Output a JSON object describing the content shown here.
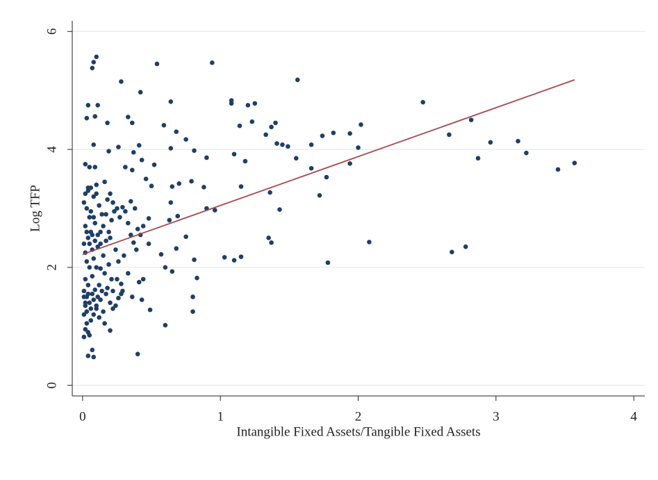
{
  "chart_data": {
    "type": "scatter",
    "xlabel": "Intangible Fixed Assets/Tangible Fixed Assets",
    "ylabel": "Log TFP",
    "color": "#1f3f66",
    "xlim": [
      -0.075,
      4.08
    ],
    "ylim": [
      -0.18,
      6.18
    ],
    "xticks": [
      0,
      1,
      2,
      3,
      4
    ],
    "yticks": [
      0,
      2,
      4,
      6
    ],
    "grid": true,
    "x": [
      0.94,
      0.54,
      0.1,
      0.08,
      0.07,
      0.28,
      1.56,
      0.42,
      0.64,
      1.08,
      1.08,
      1.2,
      1.25,
      2.47,
      0.33,
      0.09,
      0.04,
      0.11,
      1.14,
      1.23,
      1.37,
      1.4,
      0.59,
      0.18,
      0.36,
      0.03,
      0.68,
      0.75,
      1.33,
      1.74,
      1.82,
      1.94,
      2.02,
      1.41,
      1.45,
      1.49,
      1.66,
      2.0,
      2.82,
      2.66,
      2.96,
      3.16,
      3.22,
      2.87,
      0.9,
      0.81,
      1.1,
      1.18,
      1.55,
      1.66,
      1.94,
      1.77,
      3.45,
      3.57,
      1.72,
      1.36,
      1.43,
      1.15,
      0.88,
      0.79,
      0.7,
      0.65,
      0.9,
      0.96,
      0.69,
      0.75,
      1.35,
      1.37,
      2.08,
      2.68,
      2.78,
      1.03,
      1.1,
      1.15,
      1.78,
      0.81,
      0.68,
      0.57,
      0.6,
      0.65,
      0.83,
      0.8,
      0.8,
      0.6,
      0.49,
      0.43,
      0.4,
      0.2,
      0.07,
      0.04,
      0.08,
      0.48,
      0.48,
      0.63,
      0.64,
      0.64,
      0.52,
      0.43,
      0.41,
      0.37,
      0.46,
      0.5,
      0.36,
      0.31,
      0.26,
      0.19,
      0.08,
      0.01,
      0.02,
      0.03,
      0.01,
      0.04,
      0.02,
      0.05,
      0.06,
      0.03,
      0.02,
      0.01,
      0.04,
      0.07,
      0.08,
      0.09,
      0.1,
      0.11,
      0.12,
      0.13,
      0.14,
      0.15,
      0.17,
      0.18,
      0.2,
      0.22,
      0.24,
      0.26,
      0.28,
      0.21,
      0.16,
      0.05,
      0.03,
      0.02,
      0.01,
      0.04,
      0.06,
      0.02,
      0.05,
      0.03,
      0.01,
      0.04,
      0.06,
      0.08,
      0.1,
      0.12,
      0.14,
      0.09,
      0.11,
      0.13,
      0.07,
      0.08,
      0.1,
      0.15,
      0.17,
      0.19,
      0.21,
      0.23,
      0.25,
      0.27,
      0.29,
      0.31,
      0.33,
      0.35,
      0.37,
      0.39,
      0.3,
      0.26,
      0.24,
      0.2,
      0.18,
      0.2,
      0.22,
      0.16,
      0.02,
      0.05,
      0.09,
      0.35,
      0.38,
      0.4,
      0.42,
      0.44,
      0.41,
      0.44,
      0.36,
      0.33,
      0.29,
      0.25,
      0.19,
      0.13,
      0.07,
      0.04,
      0.06,
      0.08,
      0.1,
      0.12,
      0.03,
      0.05,
      0.02,
      0.01,
      0.03,
      0.05,
      0.07,
      0.09,
      0.11,
      0.13,
      0.15,
      0.17,
      0.06,
      0.08,
      0.1,
      0.04,
      0.02,
      0.16,
      0.22,
      0.28
    ],
    "values": [
      5.47,
      5.45,
      5.57,
      5.48,
      5.38,
      5.15,
      5.18,
      4.97,
      4.81,
      4.83,
      4.78,
      4.75,
      4.78,
      4.8,
      4.55,
      4.56,
      4.75,
      4.75,
      4.4,
      4.47,
      4.38,
      4.45,
      4.41,
      4.45,
      4.45,
      4.53,
      4.3,
      4.17,
      4.25,
      4.23,
      4.28,
      4.27,
      4.42,
      4.1,
      4.08,
      4.05,
      4.08,
      4.03,
      4.5,
      4.25,
      4.12,
      4.14,
      3.94,
      3.85,
      3.86,
      3.98,
      3.92,
      3.8,
      3.85,
      3.68,
      3.76,
      3.53,
      3.66,
      3.77,
      3.22,
      3.27,
      2.98,
      3.37,
      3.36,
      3.46,
      3.42,
      3.37,
      3.0,
      2.97,
      2.87,
      2.52,
      2.5,
      2.42,
      2.43,
      2.26,
      2.35,
      2.17,
      2.12,
      2.18,
      2.08,
      2.13,
      2.32,
      2.22,
      2.0,
      1.93,
      1.82,
      1.5,
      1.25,
      1.02,
      1.28,
      1.45,
      0.53,
      0.93,
      0.6,
      0.5,
      0.48,
      2.4,
      2.83,
      2.8,
      3.1,
      4.02,
      3.74,
      3.82,
      4.07,
      3.95,
      3.5,
      3.38,
      3.65,
      3.7,
      4.04,
      3.97,
      4.08,
      1.2,
      1.35,
      1.5,
      1.6,
      1.7,
      1.8,
      1.4,
      1.3,
      1.05,
      0.95,
      0.82,
      0.9,
      1.55,
      1.45,
      1.62,
      1.35,
      1.5,
      1.7,
      1.45,
      1.6,
      1.25,
      1.55,
      1.65,
      1.4,
      1.6,
      1.35,
      1.48,
      1.72,
      1.8,
      1.9,
      2.0,
      2.1,
      2.25,
      2.4,
      2.5,
      2.6,
      2.7,
      2.85,
      3.0,
      3.1,
      3.3,
      3.35,
      3.2,
      3.25,
      3.05,
      2.9,
      2.75,
      2.55,
      2.4,
      2.3,
      2.15,
      2.0,
      2.2,
      2.45,
      2.6,
      2.8,
      2.95,
      3.0,
      2.85,
      3.02,
      2.95,
      2.75,
      2.55,
      2.42,
      2.3,
      2.2,
      2.1,
      2.3,
      2.5,
      3.15,
      3.25,
      3.1,
      3.45,
      3.75,
      3.7,
      3.7,
      3.12,
      3.0,
      2.65,
      2.55,
      2.7,
      1.75,
      1.8,
      1.5,
      1.9,
      1.6,
      1.8,
      2.05,
      1.98,
      1.85,
      1.55,
      1.1,
      1.2,
      1.3,
      1.15,
      1.25,
      0.85,
      1.4,
      1.5,
      2.6,
      2.4,
      2.55,
      2.45,
      2.35,
      2.6,
      2.7,
      2.9,
      2.95,
      2.85,
      3.4,
      3.35,
      3.25,
      1.05,
      1.3,
      1.55
    ],
    "fit": {
      "x": [
        0,
        3.57
      ],
      "values": [
        2.22,
        5.18
      ],
      "color": "#a8464c"
    }
  }
}
